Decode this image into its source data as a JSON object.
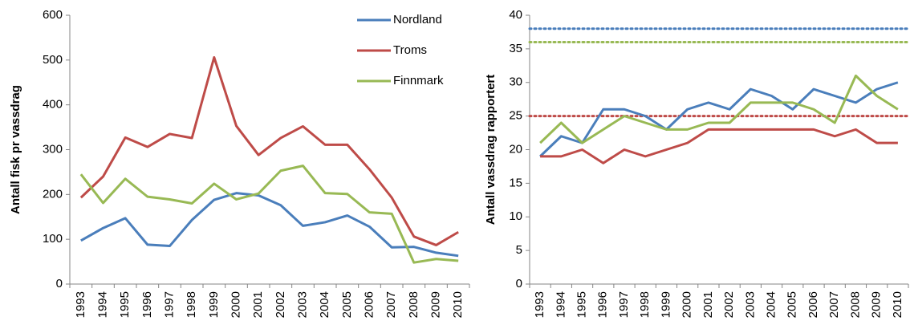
{
  "chart_data": [
    {
      "type": "line",
      "y_label": "Antall fisk pr vassdrag",
      "categories": [
        "1993",
        "1994",
        "1995",
        "1996",
        "1997",
        "1998",
        "1999",
        "2000",
        "2001",
        "2002",
        "2003",
        "2004",
        "2005",
        "2006",
        "2007",
        "2008",
        "2009",
        "2010"
      ],
      "ylim": [
        0,
        600
      ],
      "yticks": [
        0,
        100,
        200,
        300,
        400,
        500,
        600
      ],
      "legend": "top-right",
      "series": [
        {
          "name": "Nordland",
          "color": "#4a7ebb",
          "values": [
            97,
            125,
            147,
            88,
            85,
            143,
            188,
            203,
            198,
            176,
            130,
            138,
            153,
            128,
            82,
            83,
            70,
            63
          ]
        },
        {
          "name": "Troms",
          "color": "#be4b48",
          "values": [
            193,
            240,
            327,
            306,
            335,
            326,
            506,
            353,
            288,
            326,
            352,
            311,
            311,
            256,
            193,
            106,
            87,
            116
          ]
        },
        {
          "name": "Finnmark",
          "color": "#98b954",
          "values": [
            245,
            181,
            235,
            195,
            189,
            180,
            224,
            189,
            202,
            253,
            264,
            203,
            201,
            160,
            157,
            48,
            56,
            52
          ]
        }
      ]
    },
    {
      "type": "line",
      "y_label": "Antall vassdrag rapportert",
      "categories": [
        "1993",
        "1994",
        "1995",
        "1996",
        "1997",
        "1998",
        "1999",
        "2000",
        "2001",
        "2002",
        "2003",
        "2004",
        "2005",
        "2006",
        "2007",
        "2008",
        "2009",
        "2010"
      ],
      "ylim": [
        0,
        40
      ],
      "yticks": [
        0,
        5,
        10,
        15,
        20,
        25,
        30,
        35,
        40
      ],
      "reference_lines": [
        {
          "value": 38,
          "color": "#4a7ebb"
        },
        {
          "value": 36,
          "color": "#98b954"
        },
        {
          "value": 25,
          "color": "#be4b48"
        }
      ],
      "series": [
        {
          "color": "#4a7ebb",
          "values": [
            19,
            22,
            21,
            26,
            26,
            25,
            23,
            26,
            27,
            26,
            29,
            28,
            26,
            29,
            28,
            27,
            29,
            30
          ]
        },
        {
          "color": "#be4b48",
          "values": [
            19,
            19,
            20,
            18,
            20,
            19,
            20,
            21,
            23,
            23,
            23,
            23,
            23,
            23,
            22,
            23,
            21,
            21
          ]
        },
        {
          "color": "#98b954",
          "values": [
            21,
            24,
            21,
            23,
            25,
            24,
            23,
            23,
            24,
            24,
            27,
            27,
            27,
            26,
            24,
            31,
            28,
            26
          ]
        }
      ]
    }
  ]
}
